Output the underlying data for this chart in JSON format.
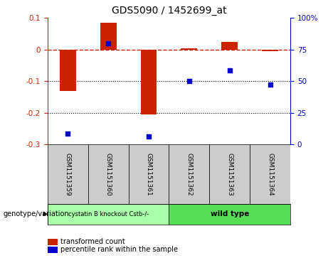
{
  "title": "GDS5090 / 1452699_at",
  "samples": [
    "GSM1151359",
    "GSM1151360",
    "GSM1151361",
    "GSM1151362",
    "GSM1151363",
    "GSM1151364"
  ],
  "bar_values": [
    -0.13,
    0.085,
    -0.205,
    0.005,
    0.025,
    -0.005
  ],
  "dot_values_left": [
    -0.265,
    0.02,
    -0.275,
    -0.1,
    -0.065,
    -0.11
  ],
  "ylim_left": [
    -0.3,
    0.1
  ],
  "ylim_right": [
    0,
    100
  ],
  "yticks_left": [
    0.1,
    0.0,
    -0.1,
    -0.2,
    -0.3
  ],
  "yticks_right": [
    100,
    75,
    50,
    25,
    0
  ],
  "bar_color": "#cc2200",
  "dot_color": "#0000cc",
  "group1_label": "cystatin B knockout Cstb-/-",
  "group2_label": "wild type",
  "group1_indices": [
    0,
    1,
    2
  ],
  "group2_indices": [
    3,
    4,
    5
  ],
  "group1_color": "#aaffaa",
  "group2_color": "#55dd55",
  "legend_bar_label": "transformed count",
  "legend_dot_label": "percentile rank within the sample",
  "genotype_label": "genotype/variation",
  "bar_width": 0.4,
  "background_color": "#ffffff",
  "right_axis_color": "#0000cc",
  "left_axis_color": "#cc2200",
  "sample_box_color": "#cccccc",
  "n_samples": 6
}
